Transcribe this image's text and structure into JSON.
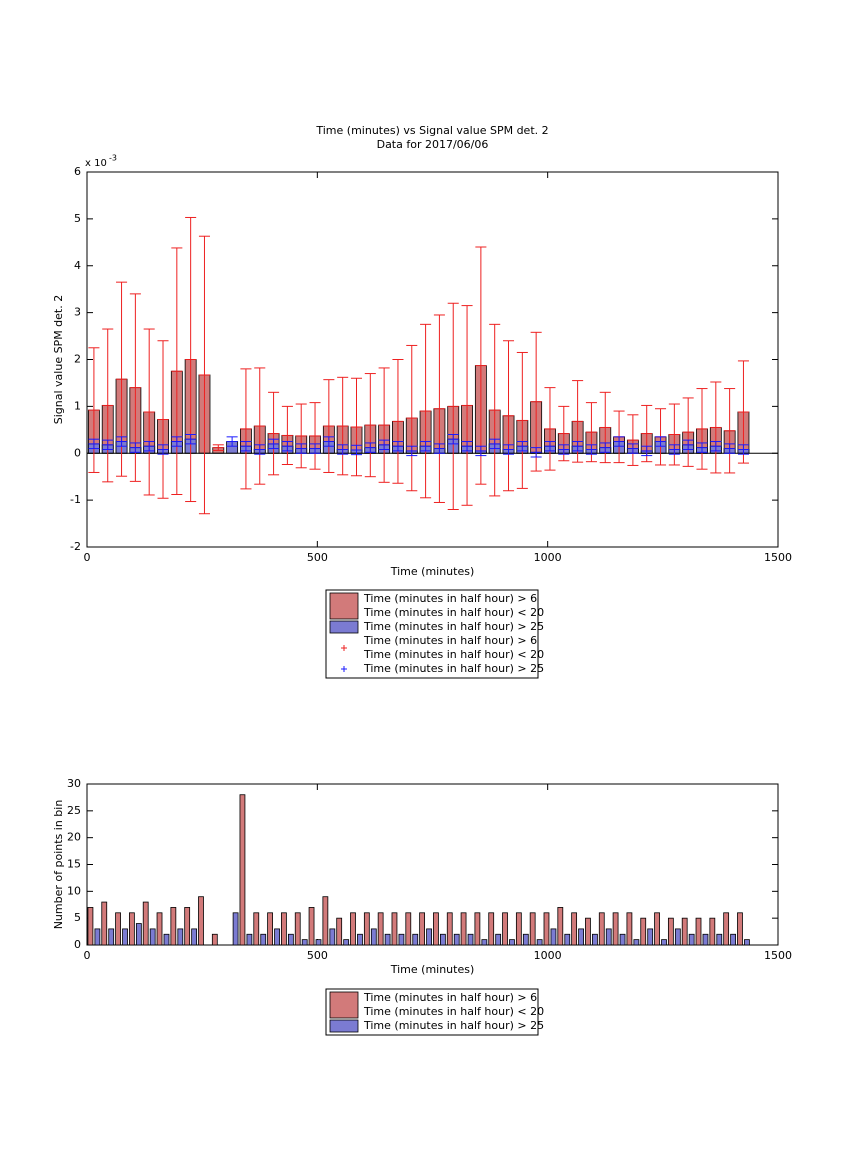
{
  "chart_data": [
    {
      "type": "bar_errorbar",
      "title": [
        "Time (minutes) vs Signal value SPM det. 2",
        "Data for 2017/06/06"
      ],
      "y_multiplier": {
        "base": "x 10",
        "exponent": "-3"
      },
      "xlabel": "Time (minutes)",
      "ylabel": "Signal value SPM det. 2",
      "x": [
        15,
        45,
        75,
        105,
        135,
        165,
        195,
        225,
        255,
        285,
        315,
        345,
        375,
        405,
        435,
        465,
        495,
        525,
        555,
        585,
        615,
        645,
        675,
        705,
        735,
        765,
        795,
        825,
        855,
        885,
        915,
        945,
        975,
        1005,
        1035,
        1065,
        1095,
        1125,
        1155,
        1185,
        1215,
        1245,
        1275,
        1305,
        1335,
        1365,
        1395,
        1425
      ],
      "xlim": [
        0,
        1500
      ],
      "xticks": [
        0,
        500,
        1000,
        1500
      ],
      "ylim": [
        -2,
        6
      ],
      "yticks": [
        -2,
        -1,
        0,
        1,
        2,
        3,
        4,
        5,
        6
      ],
      "series": [
        {
          "name": [
            "Time (minutes in half hour) > 6",
            "Time (minutes in half hour) < 20"
          ],
          "color": "#d27a7a",
          "error_color": "#ee2020",
          "values": [
            0.92,
            1.02,
            1.58,
            1.4,
            0.88,
            0.72,
            1.75,
            2.0,
            1.67,
            0.12,
            null,
            0.52,
            0.58,
            0.42,
            0.38,
            0.37,
            0.37,
            0.58,
            0.58,
            0.56,
            0.6,
            0.6,
            0.68,
            0.75,
            0.9,
            0.95,
            1.0,
            1.02,
            1.87,
            0.92,
            0.8,
            0.7,
            1.1,
            0.52,
            0.42,
            0.68,
            0.45,
            0.55,
            0.35,
            0.28,
            0.42,
            0.35,
            0.4,
            0.45,
            0.52,
            0.55,
            0.48,
            0.88
          ],
          "errors": [
            1.33,
            1.63,
            2.07,
            2.0,
            1.77,
            1.68,
            2.63,
            3.03,
            2.96,
            0.06,
            null,
            1.28,
            1.24,
            0.88,
            0.62,
            0.68,
            0.71,
            0.99,
            1.04,
            1.04,
            1.1,
            1.22,
            1.32,
            1.55,
            1.85,
            2.0,
            2.2,
            2.13,
            2.53,
            1.83,
            1.6,
            1.45,
            1.48,
            0.88,
            0.58,
            0.87,
            0.63,
            0.75,
            0.55,
            0.54,
            0.6,
            0.6,
            0.65,
            0.73,
            0.86,
            0.97,
            0.9,
            1.09
          ]
        },
        {
          "name": [
            "Time (minutes in half hour) > 25"
          ],
          "color": "#7b7bd2",
          "error_color": "#1a1aff",
          "values": [
            0.2,
            0.18,
            0.25,
            0.12,
            0.15,
            0.08,
            0.25,
            0.3,
            null,
            null,
            0.25,
            0.15,
            0.08,
            0.2,
            0.15,
            0.1,
            0.1,
            0.25,
            0.08,
            0.07,
            0.12,
            0.18,
            0.15,
            0.05,
            0.15,
            0.1,
            0.3,
            0.15,
            0.05,
            0.2,
            0.08,
            0.15,
            0.02,
            0.15,
            0.08,
            0.15,
            0.08,
            0.12,
            0.25,
            0.1,
            0.05,
            0.25,
            0.08,
            0.18,
            0.12,
            0.15,
            0.1,
            0.08
          ],
          "errors": [
            0.1,
            0.1,
            0.1,
            0.1,
            0.1,
            0.1,
            0.1,
            0.1,
            null,
            null,
            0.1,
            0.1,
            0.1,
            0.1,
            0.1,
            0.1,
            0.1,
            0.1,
            0.1,
            0.1,
            0.1,
            0.1,
            0.1,
            0.1,
            0.1,
            0.1,
            0.1,
            0.1,
            0.1,
            0.1,
            0.1,
            0.1,
            0.1,
            0.1,
            0.1,
            0.1,
            0.1,
            0.1,
            0.1,
            0.1,
            0.1,
            0.1,
            0.1,
            0.1,
            0.1,
            0.1,
            0.1,
            0.1
          ]
        }
      ],
      "legend": "bottom outside"
    },
    {
      "type": "grouped_bar",
      "xlabel": "Time (minutes)",
      "ylabel": "Number of points in bin",
      "x": [
        15,
        45,
        75,
        105,
        135,
        165,
        195,
        225,
        255,
        285,
        315,
        345,
        375,
        405,
        435,
        465,
        495,
        525,
        555,
        585,
        615,
        645,
        675,
        705,
        735,
        765,
        795,
        825,
        855,
        885,
        915,
        945,
        975,
        1005,
        1035,
        1065,
        1095,
        1125,
        1155,
        1185,
        1215,
        1245,
        1275,
        1305,
        1335,
        1365,
        1395,
        1425
      ],
      "xlim": [
        0,
        1500
      ],
      "xticks": [
        0,
        500,
        1000,
        1500
      ],
      "ylim": [
        0,
        30
      ],
      "yticks": [
        0,
        5,
        10,
        15,
        20,
        25,
        30
      ],
      "series": [
        {
          "name": [
            "Time (minutes in half hour) > 6",
            "Time (minutes in half hour) < 20"
          ],
          "color": "#d27a7a",
          "values": [
            7,
            8,
            6,
            6,
            8,
            6,
            7,
            7,
            9,
            2,
            null,
            28,
            6,
            6,
            6,
            6,
            7,
            9,
            5,
            6,
            6,
            6,
            6,
            6,
            6,
            6,
            6,
            6,
            6,
            6,
            6,
            6,
            6,
            6,
            7,
            6,
            5,
            6,
            6,
            6,
            5,
            6,
            5,
            5,
            5,
            5,
            6,
            6
          ]
        },
        {
          "name": [
            "Time (minutes in half hour) > 25"
          ],
          "color": "#7b7bd2",
          "values": [
            3,
            3,
            3,
            4,
            3,
            2,
            3,
            3,
            null,
            null,
            6,
            2,
            2,
            3,
            2,
            1,
            1,
            3,
            1,
            2,
            3,
            2,
            2,
            2,
            3,
            2,
            2,
            2,
            1,
            2,
            1,
            2,
            1,
            3,
            2,
            3,
            2,
            3,
            2,
            1,
            3,
            1,
            3,
            2,
            2,
            2,
            2,
            1
          ]
        }
      ],
      "legend": "bottom outside"
    }
  ]
}
